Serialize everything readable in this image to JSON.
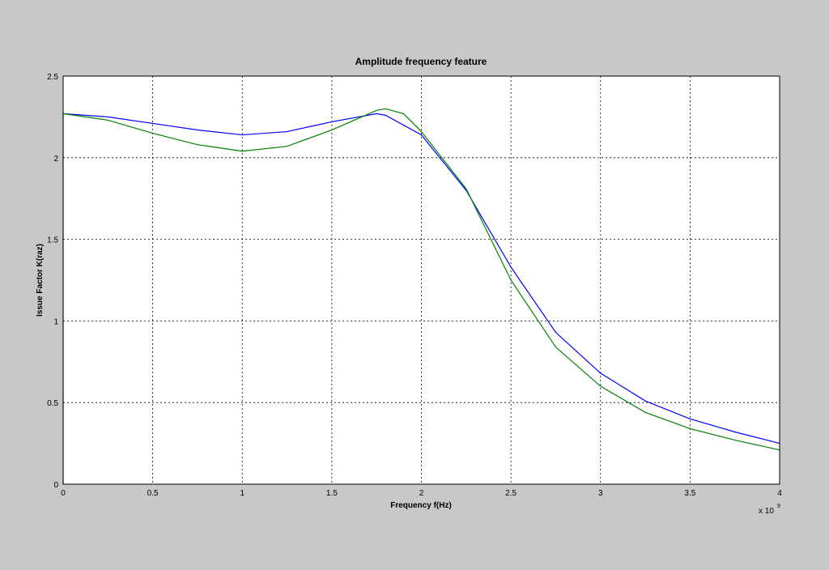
{
  "chart_data": {
    "type": "line",
    "title": "Amplitude frequency feature",
    "x_label": "Frequency f(Hz)",
    "y_label": "Issue Factor K(raz)",
    "x_multiplier": "x 10",
    "x_multiplier_exp": "9",
    "xlim": [
      0,
      4
    ],
    "ylim": [
      0,
      2.5
    ],
    "xticks": [
      0,
      0.5,
      1,
      1.5,
      2,
      2.5,
      3,
      3.5,
      4
    ],
    "yticks": [
      0,
      0.5,
      1,
      1.5,
      2,
      2.5
    ],
    "grid": true,
    "series": [
      {
        "color": "#0000ff",
        "x": [
          0,
          0.25,
          0.5,
          0.75,
          1,
          1.25,
          1.5,
          1.75,
          1.8,
          2,
          2.25,
          2.5,
          2.75,
          3,
          3.25,
          3.5,
          3.75,
          4
        ],
        "values": [
          2.27,
          2.25,
          2.21,
          2.17,
          2.14,
          2.16,
          2.22,
          2.27,
          2.26,
          2.14,
          1.8,
          1.33,
          0.93,
          0.68,
          0.51,
          0.4,
          0.32,
          0.25
        ]
      },
      {
        "color": "#008000",
        "x": [
          0,
          0,
          0.25,
          0.5,
          0.75,
          1,
          1.25,
          1.5,
          1.75,
          1.8,
          1.9,
          2,
          2.25,
          2.5,
          2.75,
          3,
          3.25,
          3.5,
          3.75,
          4
        ],
        "values": [
          0,
          2.27,
          2.23,
          2.15,
          2.08,
          2.04,
          2.07,
          2.17,
          2.29,
          2.3,
          2.27,
          2.16,
          1.81,
          1.25,
          0.84,
          0.6,
          0.44,
          0.34,
          0.27,
          0.21
        ]
      }
    ]
  }
}
